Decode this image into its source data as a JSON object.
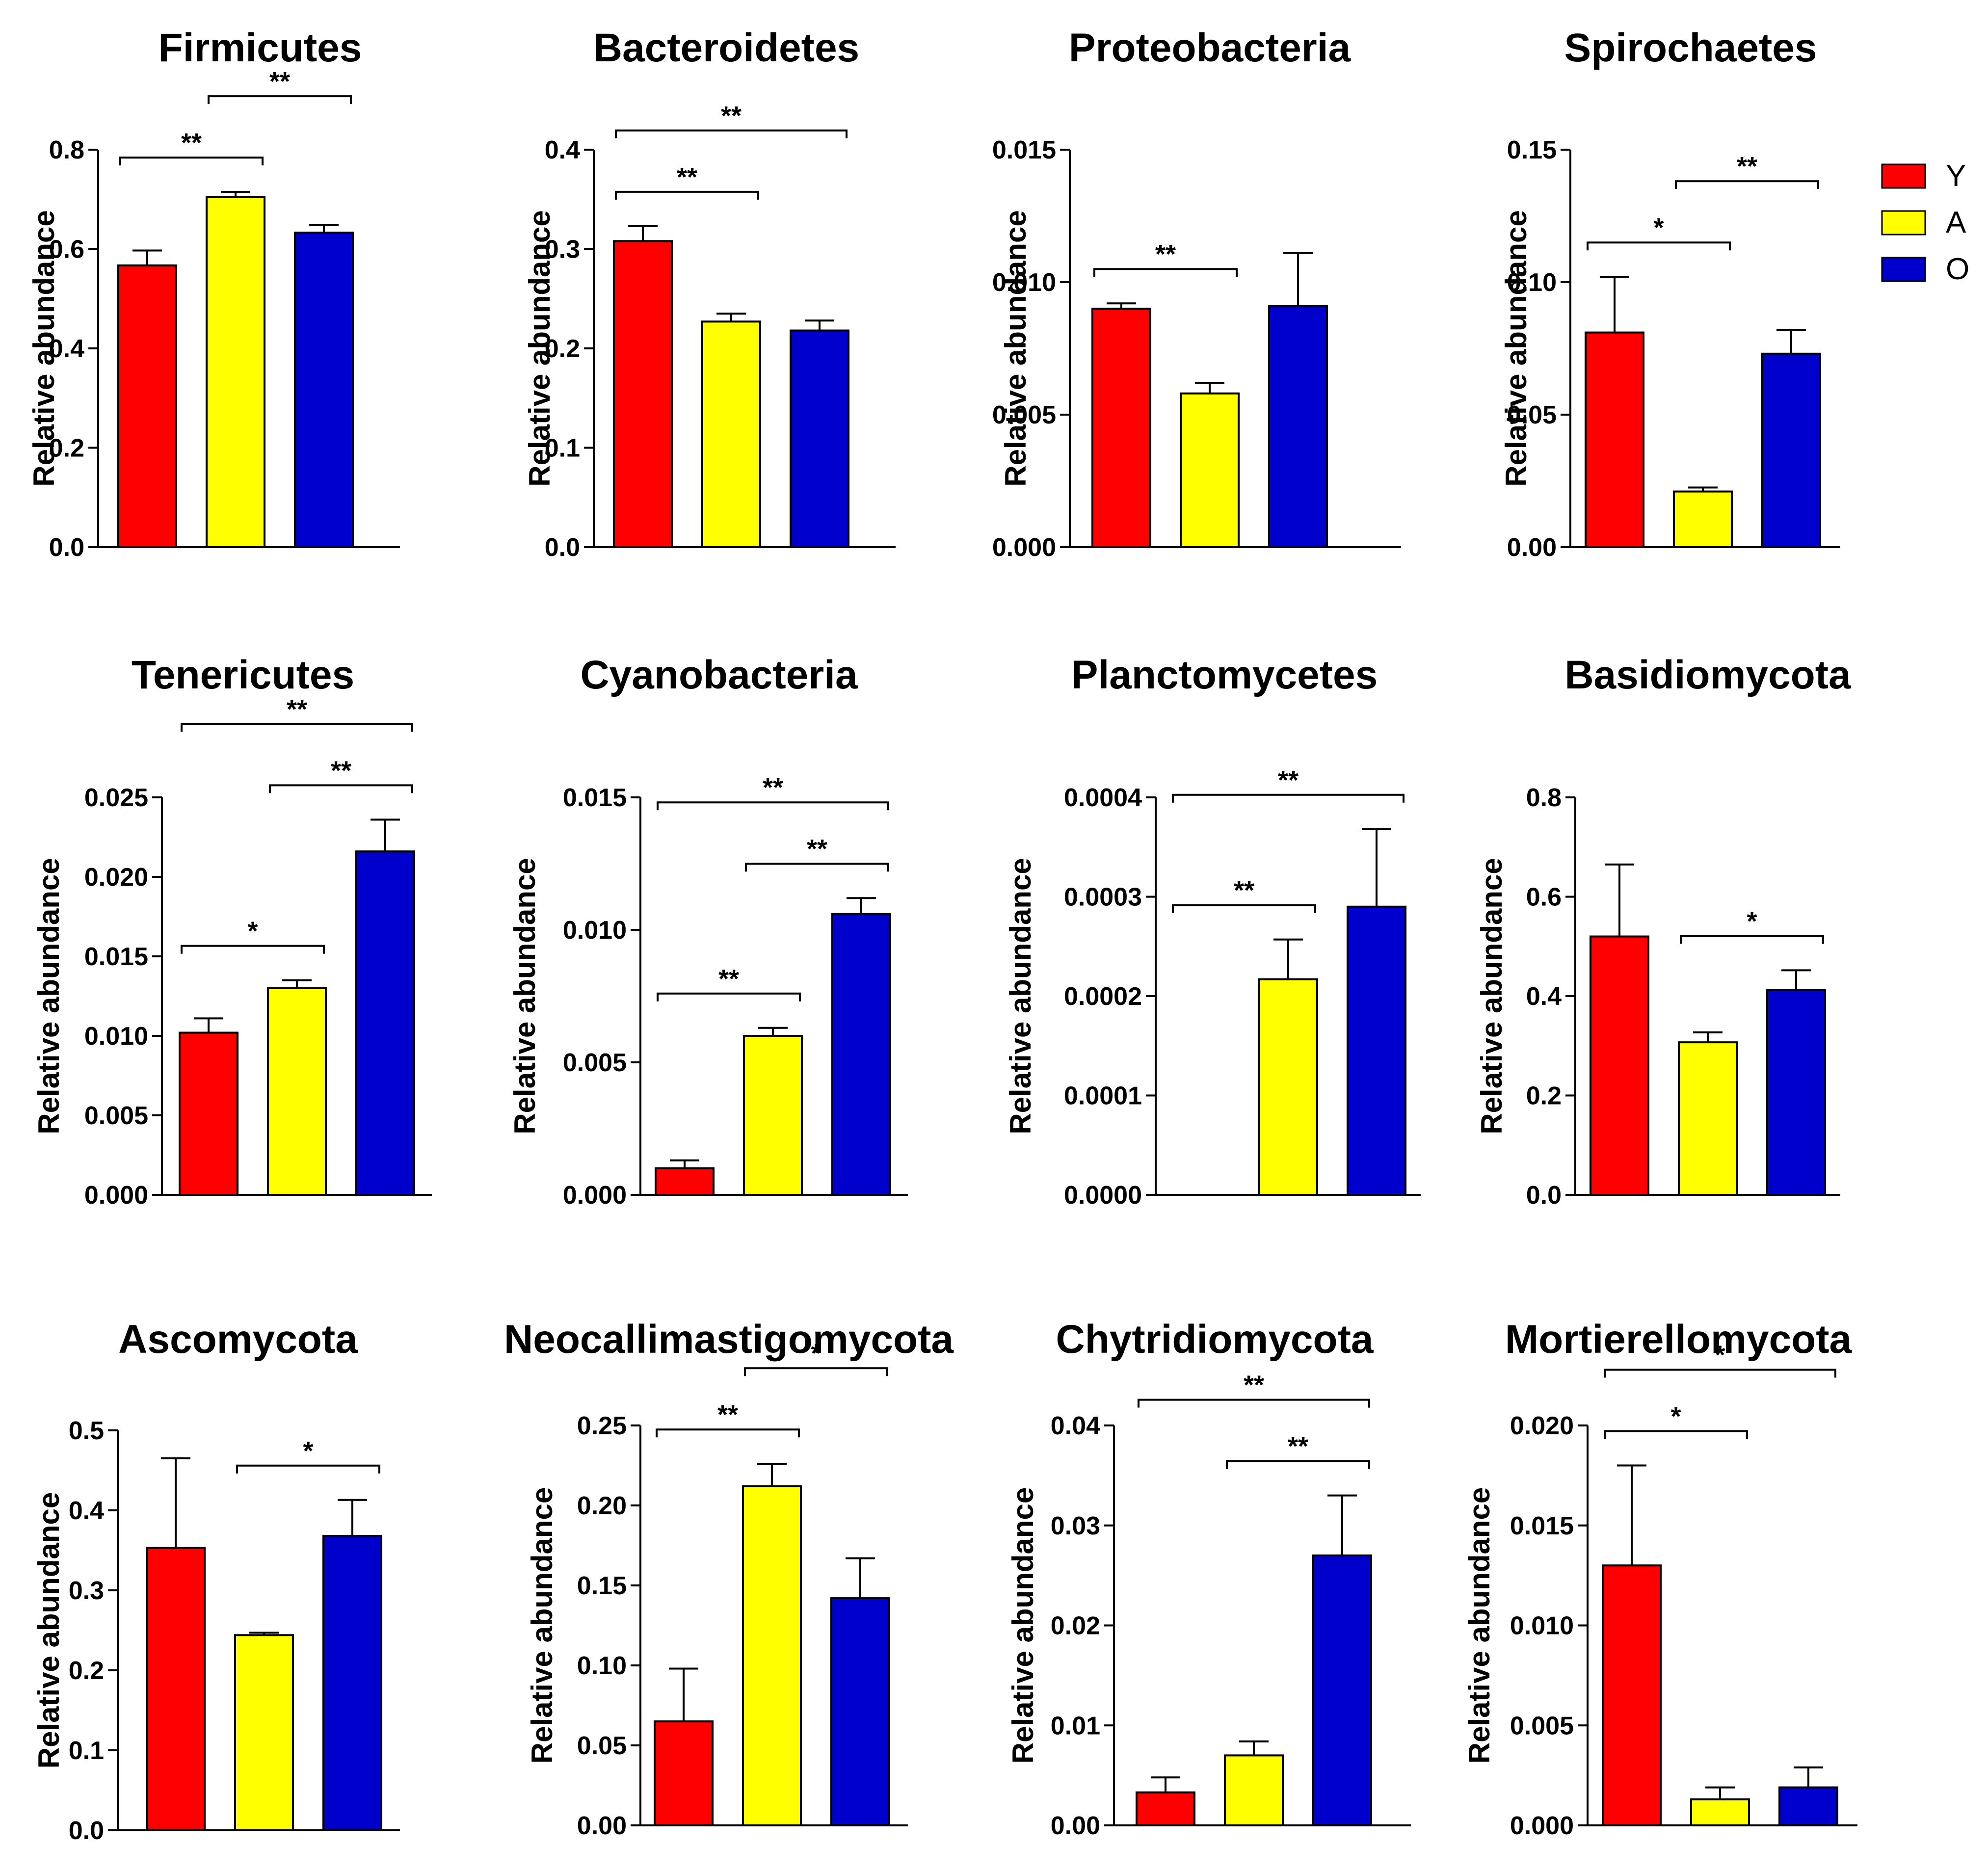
{
  "legend": [
    {
      "label": "Y",
      "color": "#ff0000"
    },
    {
      "label": "A",
      "color": "#ffff00"
    },
    {
      "label": "O",
      "color": "#0000cc"
    }
  ],
  "chart_data": [
    {
      "type": "bar",
      "title": "Firmicutes",
      "ylabel": "Relative abundance",
      "categories": [
        "Y",
        "A",
        "O"
      ],
      "values": [
        0.567,
        0.705,
        0.633
      ],
      "errors": [
        0.03,
        0.01,
        0.015
      ],
      "ylim": [
        0,
        0.8
      ],
      "yticks": [
        "0.0",
        "0.2",
        "0.4",
        "0.6",
        "0.8"
      ],
      "significance": [
        {
          "from": 0,
          "to": 1,
          "label": "**"
        },
        {
          "from": 1,
          "to": 2,
          "label": "**"
        }
      ]
    },
    {
      "type": "bar",
      "title": "Bacteroidetes",
      "ylabel": "Relative abundance",
      "categories": [
        "Y",
        "A",
        "O"
      ],
      "values": [
        0.308,
        0.227,
        0.218
      ],
      "errors": [
        0.015,
        0.008,
        0.01
      ],
      "ylim": [
        0,
        0.4
      ],
      "yticks": [
        "0.0",
        "0.1",
        "0.2",
        "0.3",
        "0.4"
      ],
      "significance": [
        {
          "from": 0,
          "to": 1,
          "label": "**"
        },
        {
          "from": 0,
          "to": 2,
          "label": "**"
        }
      ]
    },
    {
      "type": "bar",
      "title": "Proteobacteria",
      "ylabel": "Relative abundance",
      "categories": [
        "Y",
        "A",
        "O"
      ],
      "values": [
        0.009,
        0.0058,
        0.0091
      ],
      "errors": [
        0.0002,
        0.0004,
        0.002
      ],
      "ylim": [
        0,
        0.015
      ],
      "yticks": [
        "0.000",
        "0.005",
        "0.010",
        "0.015"
      ],
      "significance": [
        {
          "from": 0,
          "to": 1,
          "label": "**"
        }
      ]
    },
    {
      "type": "bar",
      "title": "Spirochaetes",
      "ylabel": "Relative abundance",
      "categories": [
        "Y",
        "A",
        "O"
      ],
      "values": [
        0.081,
        0.021,
        0.073
      ],
      "errors": [
        0.021,
        0.0015,
        0.009
      ],
      "ylim": [
        0,
        0.15
      ],
      "yticks": [
        "0.00",
        "0.05",
        "0.10",
        "0.15"
      ],
      "significance": [
        {
          "from": 0,
          "to": 1,
          "label": "*"
        },
        {
          "from": 1,
          "to": 2,
          "label": "**"
        }
      ]
    },
    {
      "type": "bar",
      "title": "Tenericutes",
      "ylabel": "Relative abundance",
      "categories": [
        "Y",
        "A",
        "O"
      ],
      "values": [
        0.0102,
        0.013,
        0.0216
      ],
      "errors": [
        0.0009,
        0.0005,
        0.002
      ],
      "ylim": [
        0,
        0.025
      ],
      "yticks": [
        "0.000",
        "0.005",
        "0.010",
        "0.015",
        "0.020",
        "0.025"
      ],
      "significance": [
        {
          "from": 0,
          "to": 1,
          "label": "*"
        },
        {
          "from": 1,
          "to": 2,
          "label": "**"
        },
        {
          "from": 0,
          "to": 2,
          "label": "**"
        }
      ]
    },
    {
      "type": "bar",
      "title": "Cyanobacteria",
      "ylabel": "Relative abundance",
      "categories": [
        "Y",
        "A",
        "O"
      ],
      "values": [
        0.001,
        0.006,
        0.0106
      ],
      "errors": [
        0.0003,
        0.0003,
        0.0006
      ],
      "ylim": [
        0,
        0.015
      ],
      "yticks": [
        "0.000",
        "0.005",
        "0.010",
        "0.015"
      ],
      "significance": [
        {
          "from": 0,
          "to": 1,
          "label": "**"
        },
        {
          "from": 1,
          "to": 2,
          "label": "**"
        },
        {
          "from": 0,
          "to": 2,
          "label": "**"
        }
      ]
    },
    {
      "type": "bar",
      "title": "Planctomycetes",
      "ylabel": "Relative abundance",
      "categories": [
        "Y",
        "A",
        "O"
      ],
      "values": [
        0,
        0.000217,
        0.00029
      ],
      "errors": [
        0,
        4e-05,
        7.8e-05
      ],
      "ylim": [
        0,
        0.0004
      ],
      "yticks": [
        "0.0000",
        "0.0001",
        "0.0002",
        "0.0003",
        "0.0004"
      ],
      "significance": [
        {
          "from": 0,
          "to": 1,
          "label": "**"
        },
        {
          "from": 0,
          "to": 2,
          "label": "**"
        }
      ]
    },
    {
      "type": "bar",
      "title": "Basidiomycota",
      "ylabel": "Relative abundance",
      "categories": [
        "Y",
        "A",
        "O"
      ],
      "values": [
        0.52,
        0.307,
        0.412
      ],
      "errors": [
        0.145,
        0.02,
        0.04
      ],
      "ylim": [
        0,
        0.8
      ],
      "yticks": [
        "0.0",
        "0.2",
        "0.4",
        "0.6",
        "0.8"
      ],
      "significance": [
        {
          "from": 1,
          "to": 2,
          "label": "*"
        }
      ]
    },
    {
      "type": "bar",
      "title": "Ascomycota",
      "ylabel": "Relative abundance",
      "categories": [
        "Y",
        "A",
        "O"
      ],
      "values": [
        0.353,
        0.244,
        0.368
      ],
      "errors": [
        0.112,
        0.003,
        0.045
      ],
      "ylim": [
        0,
        0.5
      ],
      "yticks": [
        "0.0",
        "0.1",
        "0.2",
        "0.3",
        "0.4",
        "0.5"
      ],
      "significance": [
        {
          "from": 1,
          "to": 2,
          "label": "*"
        }
      ]
    },
    {
      "type": "bar",
      "title": "Neocallimastigomycota",
      "ylabel": "Relative abundance",
      "categories": [
        "Y",
        "A",
        "O"
      ],
      "values": [
        0.065,
        0.212,
        0.142
      ],
      "errors": [
        0.033,
        0.014,
        0.025
      ],
      "ylim": [
        0,
        0.25
      ],
      "yticks": [
        "0.00",
        "0.05",
        "0.10",
        "0.15",
        "0.20",
        "0.25"
      ],
      "significance": [
        {
          "from": 0,
          "to": 1,
          "label": "**"
        },
        {
          "from": 1,
          "to": 2,
          "label": "*"
        }
      ]
    },
    {
      "type": "bar",
      "title": "Chytridiomycota",
      "ylabel": "Relative abundance",
      "categories": [
        "Y",
        "A",
        "O"
      ],
      "values": [
        0.0033,
        0.007,
        0.027
      ],
      "errors": [
        0.0015,
        0.0014,
        0.006
      ],
      "ylim": [
        0,
        0.04
      ],
      "yticks": [
        "0.00",
        "0.01",
        "0.02",
        "0.03",
        "0.04"
      ],
      "significance": [
        {
          "from": 1,
          "to": 2,
          "label": "**"
        },
        {
          "from": 0,
          "to": 2,
          "label": "**"
        }
      ]
    },
    {
      "type": "bar",
      "title": "Mortierellomycota",
      "ylabel": "Relative abundance",
      "categories": [
        "Y",
        "A",
        "O"
      ],
      "values": [
        0.013,
        0.0013,
        0.0019
      ],
      "errors": [
        0.005,
        0.0006,
        0.001
      ],
      "ylim": [
        0,
        0.02
      ],
      "yticks": [
        "0.000",
        "0.005",
        "0.010",
        "0.015",
        "0.020"
      ],
      "significance": [
        {
          "from": 0,
          "to": 1,
          "label": "*"
        },
        {
          "from": 0,
          "to": 2,
          "label": "*"
        }
      ]
    }
  ]
}
